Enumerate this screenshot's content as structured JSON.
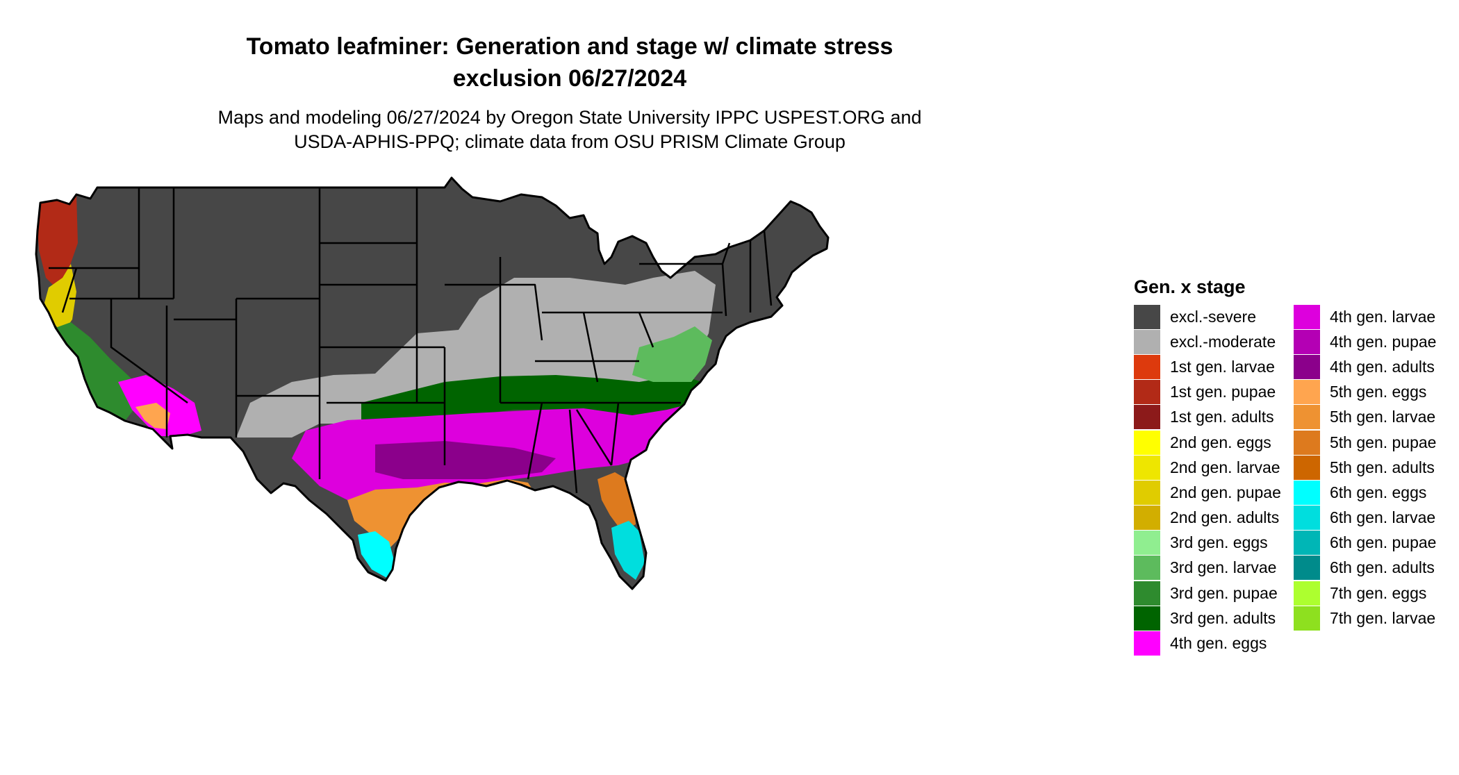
{
  "title_line1": "Tomato leafminer: Generation and stage w/ climate stress",
  "title_line2": "exclusion 06/27/2024",
  "subtitle_line1": "Maps and modeling 06/27/2024 by Oregon State University IPPC USPEST.ORG and",
  "subtitle_line2": "USDA-APHIS-PPQ; climate data from OSU PRISM Climate Group",
  "legend": {
    "title": "Gen. x stage",
    "column1": [
      {
        "label": "excl.-severe",
        "color": "#474747"
      },
      {
        "label": "excl.-moderate",
        "color": "#B0B0B0"
      },
      {
        "label": "1st gen. larvae",
        "color": "#DD3A0D"
      },
      {
        "label": "1st gen. pupae",
        "color": "#B22A17"
      },
      {
        "label": "1st gen. adults",
        "color": "#8C1A1A"
      },
      {
        "label": "2nd gen. eggs",
        "color": "#FFFF00"
      },
      {
        "label": "2nd gen. larvae",
        "color": "#EEE600"
      },
      {
        "label": "2nd gen. pupae",
        "color": "#E0CC00"
      },
      {
        "label": "2nd gen. adults",
        "color": "#D2AE00"
      },
      {
        "label": "3rd gen. eggs",
        "color": "#90EE90"
      },
      {
        "label": "3rd gen. larvae",
        "color": "#5DBB5D"
      },
      {
        "label": "3rd gen. pupae",
        "color": "#2E8B2E"
      },
      {
        "label": "3rd gen. adults",
        "color": "#006400"
      },
      {
        "label": "4th gen. eggs",
        "color": "#FF00FF"
      }
    ],
    "column2": [
      {
        "label": "4th gen. larvae",
        "color": "#DD00DD"
      },
      {
        "label": "4th gen. pupae",
        "color": "#B400B4"
      },
      {
        "label": "4th gen. adults",
        "color": "#8B008B"
      },
      {
        "label": "5th gen. eggs",
        "color": "#FFA54F"
      },
      {
        "label": "5th gen. larvae",
        "color": "#EE9232"
      },
      {
        "label": "5th gen. pupae",
        "color": "#DD7A1E"
      },
      {
        "label": "5th gen. adults",
        "color": "#CD6600"
      },
      {
        "label": "6th gen. eggs",
        "color": "#00FFFF"
      },
      {
        "label": "6th gen. larvae",
        "color": "#00DEDE"
      },
      {
        "label": "6th gen. pupae",
        "color": "#00B6B6"
      },
      {
        "label": "6th gen. adults",
        "color": "#008B8B"
      },
      {
        "label": "7th gen. eggs",
        "color": "#ADFF2F"
      },
      {
        "label": "7th gen. larvae",
        "color": "#8EE01F"
      }
    ]
  }
}
